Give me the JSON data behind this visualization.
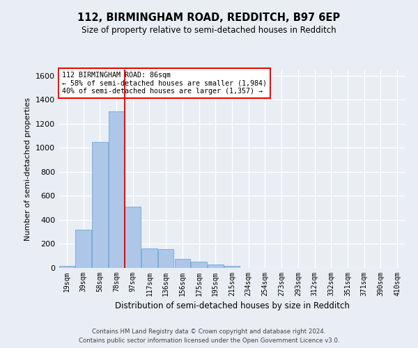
{
  "title": "112, BIRMINGHAM ROAD, REDDITCH, B97 6EP",
  "subtitle": "Size of property relative to semi-detached houses in Redditch",
  "xlabel": "Distribution of semi-detached houses by size in Redditch",
  "ylabel": "Number of semi-detached properties",
  "categories": [
    "19sqm",
    "39sqm",
    "58sqm",
    "78sqm",
    "97sqm",
    "117sqm",
    "136sqm",
    "156sqm",
    "175sqm",
    "195sqm",
    "215sqm",
    "234sqm",
    "254sqm",
    "273sqm",
    "293sqm",
    "312sqm",
    "332sqm",
    "351sqm",
    "371sqm",
    "390sqm",
    "410sqm"
  ],
  "values": [
    18,
    320,
    1050,
    1300,
    510,
    160,
    155,
    75,
    50,
    30,
    20,
    0,
    0,
    0,
    0,
    0,
    0,
    0,
    0,
    0,
    0
  ],
  "bar_color": "#aec6e8",
  "bar_edge_color": "#6aaad4",
  "vline_color": "red",
  "vline_x": 3.5,
  "annotation_text": "112 BIRMINGHAM ROAD: 86sqm\n← 58% of semi-detached houses are smaller (1,984)\n40% of semi-detached houses are larger (1,357) →",
  "annotation_box_color": "white",
  "annotation_box_edge": "red",
  "ylim": [
    0,
    1650
  ],
  "yticks": [
    0,
    200,
    400,
    600,
    800,
    1000,
    1200,
    1400,
    1600
  ],
  "footer_line1": "Contains HM Land Registry data © Crown copyright and database right 2024.",
  "footer_line2": "Contains public sector information licensed under the Open Government Licence v3.0.",
  "bg_color": "#e8eef4",
  "plot_bg_color": "#e8eef4",
  "grid_color": "white",
  "fig_width": 6.0,
  "fig_height": 5.0,
  "fig_dpi": 100
}
